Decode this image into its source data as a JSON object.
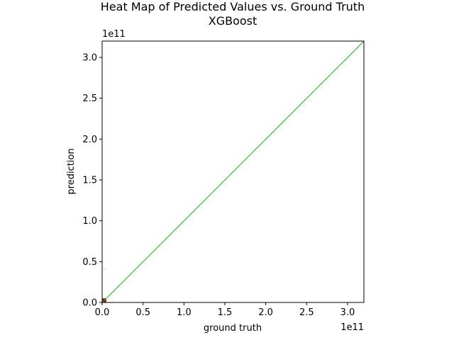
{
  "chart_data": {
    "type": "heatmap",
    "title": "Heat Map of Predicted Values vs. Ground Truth",
    "subtitle": "XGBoost",
    "xlabel": "ground truth",
    "ylabel": "prediction",
    "x_offset_label": "1e11",
    "y_offset_label": "1e11",
    "xlim": [
      0,
      3.2
    ],
    "ylim": [
      0,
      3.2
    ],
    "scale_multiplier": 100000000000.0,
    "x_ticks": [
      0.0,
      0.5,
      1.0,
      1.5,
      2.0,
      2.5,
      3.0
    ],
    "x_tick_labels": [
      "0.0",
      "0.5",
      "1.0",
      "1.5",
      "2.0",
      "2.5",
      "3.0"
    ],
    "y_ticks": [
      0.0,
      0.5,
      1.0,
      1.5,
      2.0,
      2.5,
      3.0
    ],
    "y_tick_labels": [
      "0.0",
      "0.5",
      "1.0",
      "1.5",
      "2.0",
      "2.5",
      "3.0"
    ],
    "grid": false,
    "identity_line": {
      "x": [
        0,
        3.2
      ],
      "y": [
        0,
        3.2
      ],
      "color": "#2ca02c"
    },
    "cells": [
      {
        "x": [
          0,
          0.05
        ],
        "y": [
          0,
          0.05
        ],
        "color": "#8b1a00"
      },
      {
        "x": [
          0,
          0.05
        ],
        "y": [
          0.4,
          0.42
        ],
        "color": "#fde6e6"
      }
    ]
  }
}
